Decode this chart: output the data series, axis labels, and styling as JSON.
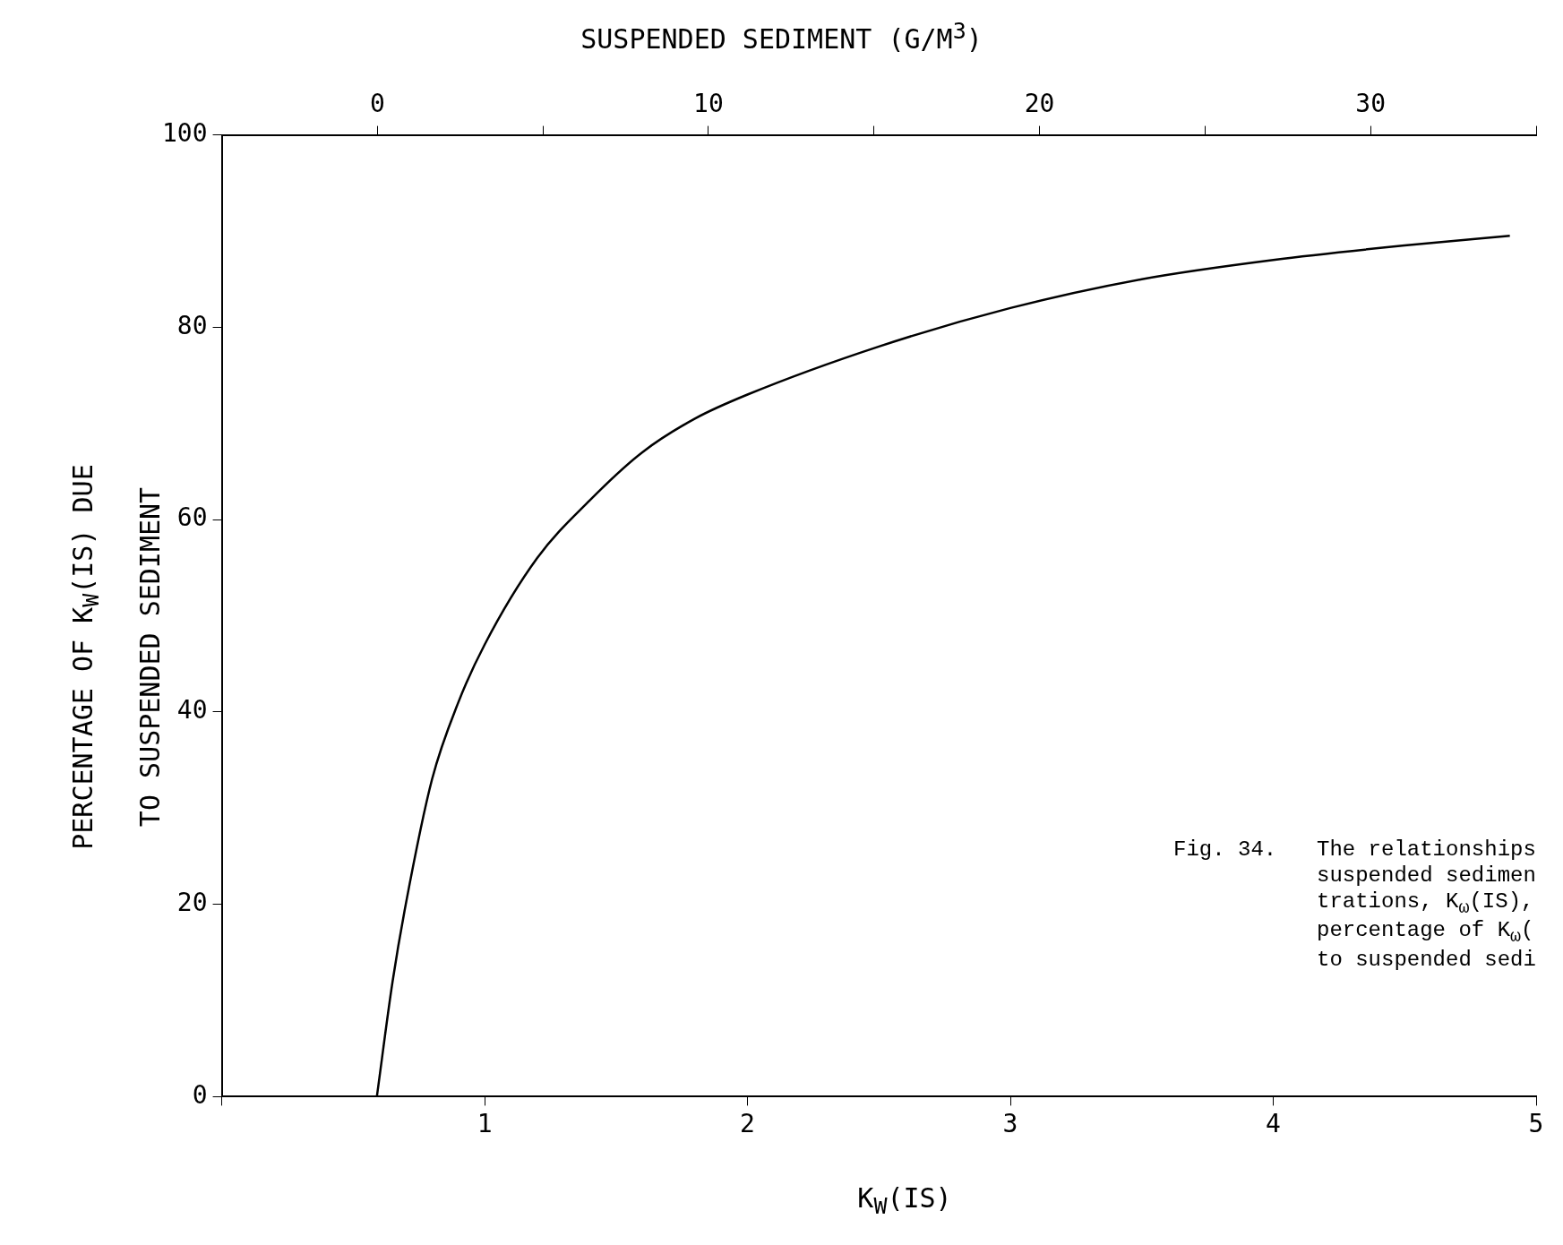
{
  "chart_data": {
    "type": "line",
    "x2label": "SUSPENDED SEDIMENT (G/M$^{3}$)",
    "xlabel": "K$_{W}$(IS)",
    "ylabel": "PERCENTAGE OF K$_{W}$(IS) DUE\nTO SUSPENDED SEDIMENT",
    "annotations": [
      "Fig. 34.",
      "The relationships\nsuspended sedimen\ntrations, K$_{ω}$(IS),\npercentage of K$_{ω}$(\nto suspended sedi"
    ],
    "x": [
      0.59,
      0.65,
      0.7,
      0.8,
      0.9,
      1.0,
      1.2,
      1.4,
      1.6,
      1.8,
      2.0,
      2.5,
      3.0,
      3.5,
      4.0,
      4.5,
      4.9
    ],
    "series": [
      {
        "color": "#000000",
        "values": [
          0,
          12,
          20,
          33,
          41,
          47,
          56,
          62,
          67,
          70.5,
          73,
          78,
          82,
          85,
          87,
          88.5,
          89.5
        ]
      }
    ],
    "xlim": [
      0,
      5
    ],
    "xticks": [
      {
        "value": 0,
        "label": null
      },
      1,
      2,
      3,
      4,
      5
    ],
    "x2lim": [
      -4.7,
      35
    ],
    "x2ticks": [
      0,
      {
        "value": 5,
        "label": null
      },
      10,
      {
        "value": 15,
        "label": null
      },
      20,
      {
        "value": 25,
        "label": null
      },
      30,
      {
        "value": 35,
        "label": null
      }
    ],
    "ylim": [
      0,
      100
    ],
    "yticks": [
      0,
      20,
      40,
      60,
      80,
      100
    ],
    "grid": false,
    "legend": false,
    "marker": "none",
    "line_style": "solid"
  }
}
